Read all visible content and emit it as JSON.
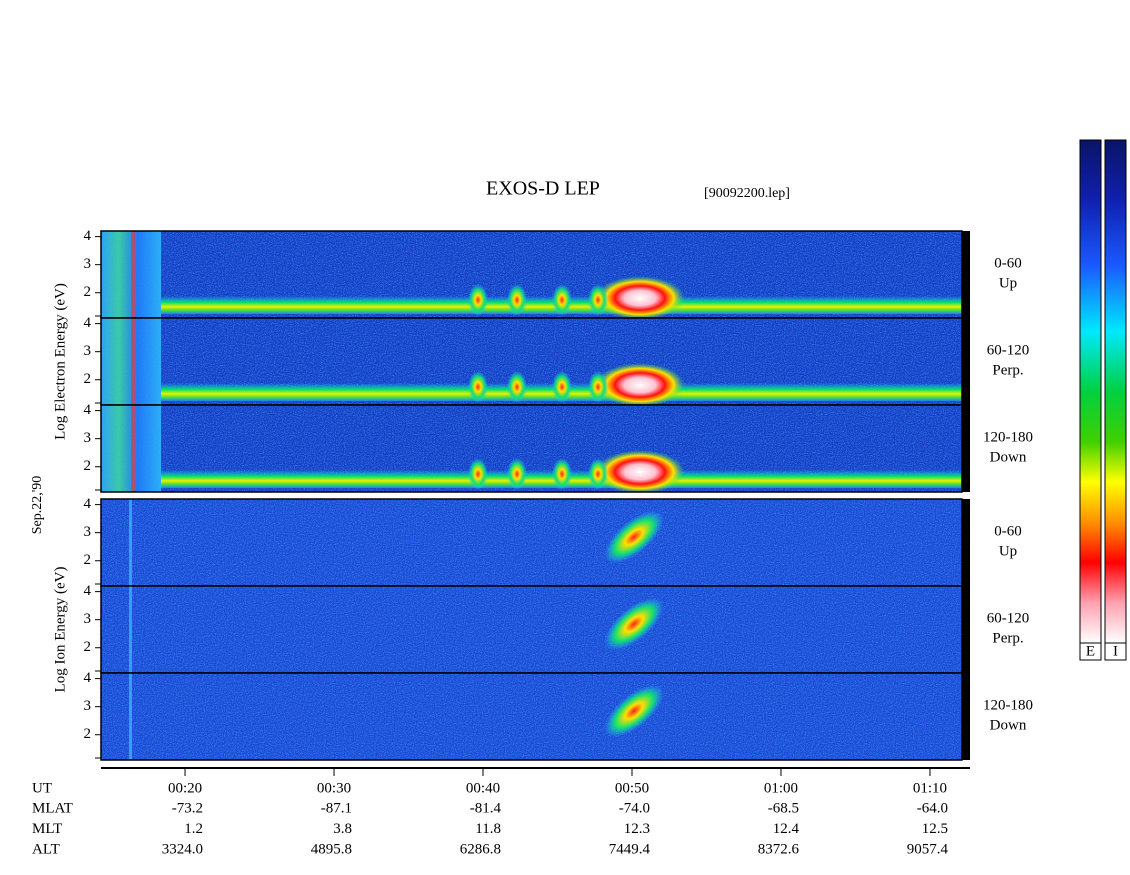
{
  "chart_data": {
    "type": "spectrogram",
    "title": "EXOS-D LEP",
    "subtitle": "[90092200.lep]",
    "date_label": "Sep.22,'90",
    "xlim": [
      14.36,
      72.15
    ],
    "xticks": [
      {
        "value": 20,
        "label": "00:20"
      },
      {
        "value": 30,
        "label": "00:30"
      },
      {
        "value": 40,
        "label": "00:40"
      },
      {
        "value": 50,
        "label": "00:50"
      },
      {
        "value": 60,
        "label": "01:00"
      },
      {
        "value": 70,
        "label": "01:10"
      }
    ],
    "xlabel": "UT",
    "ylim": [
      1.1,
      4.2
    ],
    "yticks": [
      2,
      3,
      4
    ],
    "groups": [
      {
        "species": "electron",
        "ylabel": "Log Electron Energy (eV)",
        "panels": [
          {
            "pitch": "0-60",
            "direction": "Up"
          },
          {
            "pitch": "60-120",
            "direction": "Perp."
          },
          {
            "pitch": "120-180",
            "direction": "Down"
          }
        ]
      },
      {
        "species": "ion",
        "ylabel": "Log Ion Energy (eV)",
        "panels": [
          {
            "pitch": "0-60",
            "direction": "Up"
          },
          {
            "pitch": "60-120",
            "direction": "Perp."
          },
          {
            "pitch": "120-180",
            "direction": "Down"
          }
        ]
      }
    ],
    "ephemeris": [
      {
        "name": "MLAT",
        "values": [
          "-73.2",
          "-87.1",
          "-81.4",
          "-74.0",
          "-68.5",
          "-64.0"
        ]
      },
      {
        "name": "MLT",
        "values": [
          "1.2",
          "3.8",
          "11.8",
          "12.3",
          "12.4",
          "12.5"
        ]
      },
      {
        "name": "ALT",
        "values": [
          "3324.0",
          "4895.8",
          "6286.8",
          "7449.4",
          "8372.6",
          "9057.4"
        ]
      }
    ],
    "colorbars": [
      "E",
      "I"
    ]
  }
}
